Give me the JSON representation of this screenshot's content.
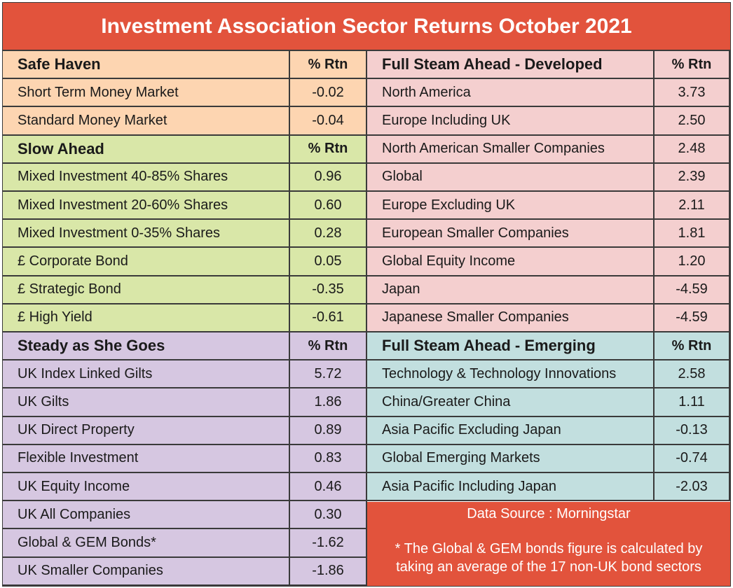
{
  "title": "Investment Association Sector Returns October 2021",
  "colors": {
    "title_bg": "#e2533c",
    "safe_haven": "#fdd5b1",
    "slow_ahead": "#d9e7a8",
    "steady": "#d6c7e1",
    "developed": "#f4cfcf",
    "emerging": "#c2dfdf"
  },
  "left": {
    "safe_haven": {
      "header": "Safe Haven",
      "rtn_header": "% Rtn",
      "rows": [
        {
          "name": "Short Term Money Market",
          "value": "-0.02"
        },
        {
          "name": "Standard Money Market",
          "value": "-0.04"
        }
      ]
    },
    "slow_ahead": {
      "header": "Slow Ahead",
      "rtn_header": "% Rtn",
      "rows": [
        {
          "name": "Mixed Investment 40-85% Shares",
          "value": "0.96"
        },
        {
          "name": "Mixed Investment 20-60% Shares",
          "value": "0.60"
        },
        {
          "name": "Mixed Investment 0-35% Shares",
          "value": "0.28"
        },
        {
          "name": "£ Corporate Bond",
          "value": "0.05"
        },
        {
          "name": "£ Strategic Bond",
          "value": "-0.35"
        },
        {
          "name": "£ High Yield",
          "value": "-0.61"
        }
      ]
    },
    "steady": {
      "header": "Steady as She Goes",
      "rtn_header": "% Rtn",
      "rows": [
        {
          "name": "UK Index Linked Gilts",
          "value": "5.72"
        },
        {
          "name": "UK Gilts",
          "value": "1.86"
        },
        {
          "name": "UK Direct Property",
          "value": "0.89"
        },
        {
          "name": "Flexible Investment",
          "value": "0.83"
        },
        {
          "name": "UK Equity Income",
          "value": "0.46"
        },
        {
          "name": "UK All Companies",
          "value": "0.30"
        },
        {
          "name": "Global & GEM Bonds*",
          "value": "-1.62"
        },
        {
          "name": "UK Smaller Companies",
          "value": "-1.86"
        }
      ]
    }
  },
  "right": {
    "developed": {
      "header": "Full Steam Ahead - Developed",
      "rtn_header": "% Rtn",
      "rows": [
        {
          "name": "North America",
          "value": "3.73"
        },
        {
          "name": "Europe Including UK",
          "value": "2.50"
        },
        {
          "name": "North American Smaller Companies",
          "value": "2.48"
        },
        {
          "name": "Global",
          "value": "2.39"
        },
        {
          "name": "Europe Excluding UK",
          "value": "2.11"
        },
        {
          "name": "European Smaller Companies",
          "value": "1.81"
        },
        {
          "name": "Global Equity Income",
          "value": "1.20"
        },
        {
          "name": "Japan",
          "value": "-4.59"
        },
        {
          "name": "Japanese Smaller Companies",
          "value": "-4.59"
        }
      ]
    },
    "emerging": {
      "header": "Full Steam Ahead - Emerging",
      "rtn_header": "% Rtn",
      "rows": [
        {
          "name": "Technology & Technology Innovations",
          "value": "2.58"
        },
        {
          "name": "China/Greater China",
          "value": "1.11"
        },
        {
          "name": "Asia Pacific Excluding Japan",
          "value": "-0.13"
        },
        {
          "name": "Global Emerging Markets",
          "value": "-0.74"
        },
        {
          "name": "Asia Pacific Including Japan",
          "value": "-2.03"
        }
      ]
    }
  },
  "source": {
    "line1": "Data Source : Morningstar",
    "note_line1": "* The Global & GEM bonds figure is calculated by",
    "note_line2": "taking an average of the 17 non-UK bond sectors"
  }
}
